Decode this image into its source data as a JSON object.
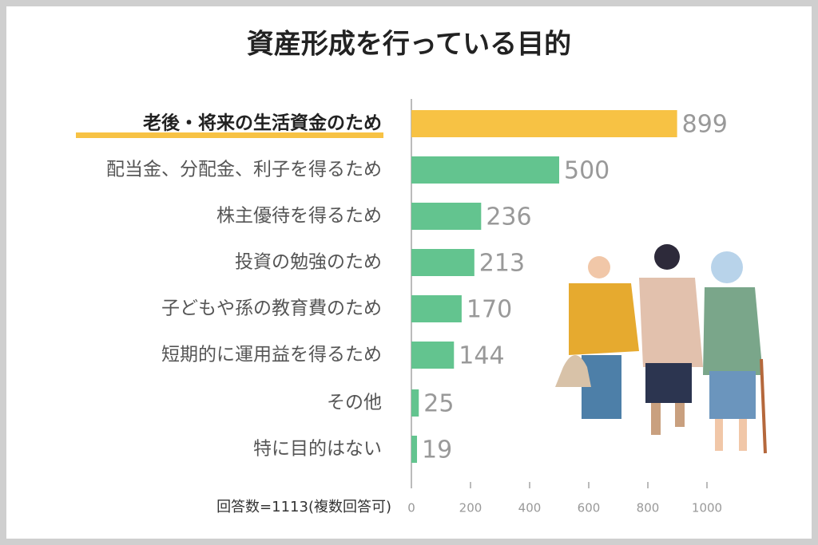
{
  "chart_data": {
    "type": "barh",
    "title": "資産形成を行っている目的",
    "categories": [
      "老後・将来の生活資金のため",
      "配当金、分配金、利子を得るため",
      "株主優待を得るため",
      "投資の勉強のため",
      "子どもや孫の教育費のため",
      "短期的に運用益を得るため",
      "その他",
      "特に目的はない"
    ],
    "values": [
      899,
      500,
      236,
      213,
      170,
      144,
      25,
      19
    ],
    "colors": [
      "#f7c244",
      "#63c48f",
      "#63c48f",
      "#63c48f",
      "#63c48f",
      "#63c48f",
      "#63c48f",
      "#63c48f"
    ],
    "xlim": [
      0,
      1000
    ],
    "xticks": [
      0,
      200,
      400,
      600,
      800,
      1000
    ],
    "annotation": "回答数=1113(複数回答可)"
  }
}
